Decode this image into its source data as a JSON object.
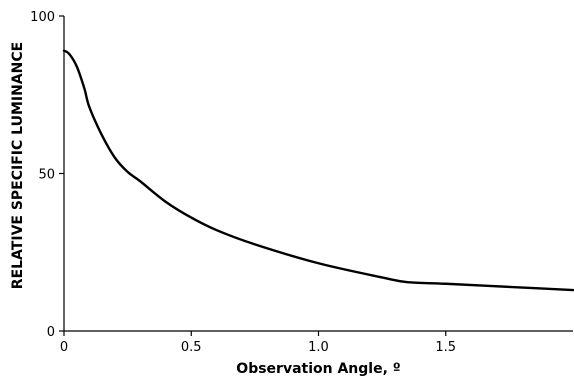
{
  "chart_data": {
    "type": "line",
    "title": "",
    "xlabel": "Observation Angle, º",
    "ylabel": "RELATIVE SPECIFIC LUMINANCE",
    "xlim": [
      0,
      2.0
    ],
    "ylim": [
      0,
      100
    ],
    "x_ticks": [
      0,
      0.5,
      1.0,
      1.5
    ],
    "x_tick_labels": [
      "0",
      "0.5",
      "1.0",
      "1.5"
    ],
    "y_ticks": [
      0,
      50,
      100
    ],
    "y_tick_labels": [
      "0",
      "50",
      "100"
    ],
    "grid": false,
    "line_color": "#000000",
    "series": [
      {
        "x": [
          0,
          0.02,
          0.05,
          0.08,
          0.1,
          0.15,
          0.2,
          0.25,
          0.3,
          0.4,
          0.5,
          0.6,
          0.75,
          1.0,
          1.25,
          1.35,
          1.5,
          1.75,
          2.0
        ],
        "y": [
          89,
          88,
          84,
          77,
          71,
          62,
          55,
          50.5,
          47.5,
          41,
          36,
          32,
          27.5,
          21.5,
          17,
          15.5,
          15,
          14,
          13
        ]
      }
    ]
  }
}
